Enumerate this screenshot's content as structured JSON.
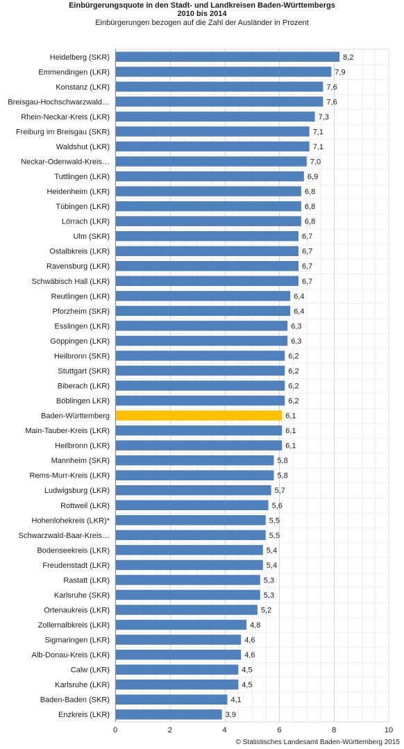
{
  "header": {
    "title_line1": "Einbürgerungsquote in den Stadt- und Landkreisen Baden-Württembergs",
    "title_line2": "2010 bis 2014",
    "subtitle": "Einbürgerungen bezogen auf die Zahl der Ausländer in Prozent"
  },
  "credit": "© Statistisches Landesamt Baden-Württemberg 2015",
  "chart_data": {
    "type": "bar",
    "orientation": "horizontal",
    "title": "Einbürgerungsquote in den Stadt- und Landkreisen Baden-Württembergs 2010 bis 2014",
    "subtitle": "Einbürgerungen bezogen auf die Zahl der Ausländer in Prozent",
    "xlim": [
      0,
      10
    ],
    "xticks": [
      "0",
      "2",
      "4",
      "6",
      "8",
      "10"
    ],
    "grid": true,
    "bar_color": "#4f81bd",
    "highlight_color": "#ffc000",
    "highlight_category": "Baden-Württemberg",
    "categories": [
      "Heidelberg (SKR)",
      "Emmendingen (LKR)",
      "Konstanz (LKR)",
      "Breisgau-Hochschwarzwald…",
      "Rhein-Neckar-Kreis (LKR)",
      "Freiburg im Breisgau (SKR)",
      "Waldshut (LKR)",
      "Neckar-Odenwald-Kreis…",
      "Tuttlingen (LKR)",
      "Heidenheim (LKR)",
      "Tübingen (LKR)",
      "Lörrach (LKR)",
      "Ulm (SKR)",
      "Ostalbkreis (LKR)",
      "Ravensburg (LKR)",
      "Schwäbisch Hall (LKR)",
      "Reutlingen (LKR)",
      "Pforzheim (SKR)",
      "Esslingen (LKR)",
      "Göppingen (LKR)",
      "Heilbronn (SKR)",
      "Stuttgart (SKR)",
      "Biberach (LKR)",
      "Böblingen LKR)",
      "Baden-Württemberg",
      "Main-Tauber-Kreis (LKR)",
      "Heilbronn (LKR)",
      "Mannheim (SKR)",
      "Rems-Murr-Kreis  (LKR)",
      "Ludwigsburg (LKR)",
      "Rottweil (LKR)",
      "Hohenlohekreis (LKR)*",
      "Schwarzwald-Baar-Kreis…",
      "Bodenseekreis (LKR)",
      "Freudenstadt (LKR)",
      "Rastatt (LKR)",
      "Karlsruhe (SKR)",
      "Ortenaukreis (LKR)",
      "Zollernalbkreis (LKR)",
      "Sigmaringen (LKR)",
      "Alb-Donau-Kreis (LKR)",
      "Calw (LKR)",
      "Karlsruhe (LKR)",
      "Baden-Baden (SKR)",
      "Enzkreis (LKR)"
    ],
    "values": [
      8.2,
      7.9,
      7.6,
      7.6,
      7.3,
      7.1,
      7.1,
      7.0,
      6.9,
      6.8,
      6.8,
      6.8,
      6.7,
      6.7,
      6.7,
      6.7,
      6.4,
      6.4,
      6.3,
      6.3,
      6.2,
      6.2,
      6.2,
      6.2,
      6.1,
      6.1,
      6.1,
      5.8,
      5.8,
      5.7,
      5.6,
      5.5,
      5.5,
      5.4,
      5.4,
      5.3,
      5.3,
      5.2,
      4.8,
      4.6,
      4.6,
      4.5,
      4.5,
      4.1,
      3.9
    ],
    "value_labels": [
      "8,2",
      "7,9",
      "7,6",
      "7,6",
      "7,3",
      "7,1",
      "7,1",
      "7,0",
      "6,9",
      "6,8",
      "6,8",
      "6,8",
      "6,7",
      "6,7",
      "6,7",
      "6,7",
      "6,4",
      "6,4",
      "6,3",
      "6,3",
      "6,2",
      "6,2",
      "6,2",
      "6,2",
      "6,1",
      "6,1",
      "6,1",
      "5,8",
      "5,8",
      "5,7",
      "5,6",
      "5,5",
      "5,5",
      "5,4",
      "5,4",
      "5,3",
      "5,3",
      "5,2",
      "4,8",
      "4,6",
      "4,6",
      "4,5",
      "4,5",
      "4,1",
      "3,9"
    ]
  }
}
